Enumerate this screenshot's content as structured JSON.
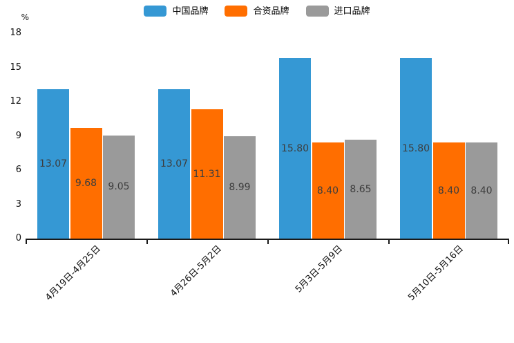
{
  "chart_data": {
    "type": "bar",
    "title": "",
    "unit_label": "%",
    "categories": [
      "4月19日-4月25日",
      "4月26日-5月2日",
      "5月3日-5月9日",
      "5月10日-5月16日"
    ],
    "series": [
      {
        "name": "中国品牌",
        "color": "#3598d4",
        "values": [
          13.07,
          13.07,
          15.8,
          15.8
        ]
      },
      {
        "name": "合资品牌",
        "color": "#ff6e00",
        "values": [
          9.68,
          11.31,
          8.4,
          8.4
        ]
      },
      {
        "name": "进口品牌",
        "color": "#9a9a9a",
        "values": [
          9.05,
          8.99,
          8.65,
          8.4
        ]
      }
    ],
    "ylim": [
      0,
      18
    ],
    "yticks": [
      0,
      3,
      6,
      9,
      12,
      15,
      18
    ],
    "legend_position": "top-center",
    "grid": false,
    "value_labels": true,
    "value_label_format": "2-decimals",
    "xlabel_rotation_deg": 45,
    "colors": {
      "axis_line": "#1a1a1a",
      "tick_text": "#111111",
      "value_text": "#3d3d3d",
      "background": "#ffffff"
    }
  }
}
